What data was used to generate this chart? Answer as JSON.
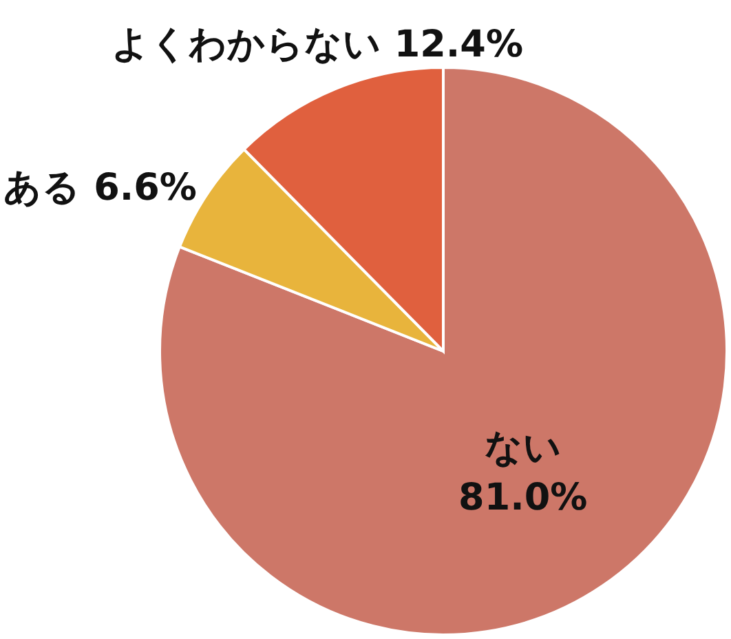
{
  "chart_data": {
    "type": "pie",
    "categories": [
      "ない",
      "ある",
      "よくわからない"
    ],
    "values": [
      81.0,
      6.6,
      12.4
    ],
    "colors": [
      "#cd7768",
      "#e8b43c",
      "#e0603e"
    ],
    "value_labels": [
      "81.0%",
      "6.6%",
      "12.4%"
    ]
  }
}
